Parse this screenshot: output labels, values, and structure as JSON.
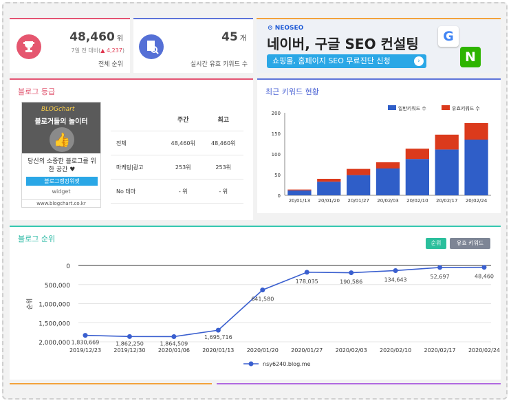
{
  "rank_card": {
    "value": "48,460",
    "unit": "위",
    "week_compare_label": "7일 전 대비(",
    "week_delta": "▲ 4,237",
    "close_paren": ")",
    "caption": "전체 순위"
  },
  "keyword_card": {
    "value": "45",
    "unit": "개",
    "caption": "실시간 유효 키워드 수"
  },
  "ad": {
    "brand": "NEOSEO",
    "headline": "네이버, 구글 SEO 컨설팅",
    "cta": "쇼핑몰, 홈페이지 SEO 무료진단 신청"
  },
  "blog_grade": {
    "title": "블로그 등급",
    "widget": {
      "logo": "BLOGchart",
      "tagline": "블로거들의 놀이터",
      "desc": "당신의 소중한 블로그를 위한 공간 ♥",
      "button": "블로그랭킹위젯",
      "widget_label": "widget",
      "url": "www.blogchart.co.kr"
    },
    "headers": [
      "",
      "주간",
      "최고"
    ],
    "rows": [
      [
        "전체",
        "48,460위",
        "48,460위"
      ],
      [
        "마케팅|광고",
        "253위",
        "253위"
      ],
      [
        "No 테마",
        "- 위",
        "- 위"
      ]
    ]
  },
  "keyword_chart_title": "최근 키워드 현황",
  "rank_chart_title": "블로그 순위",
  "rank_buttons": {
    "rank": "순위",
    "keyword": "유효 키워드"
  },
  "colors": {
    "general": "#2f5ec8",
    "valid": "#db3a1c",
    "line": "#3a5fcf"
  },
  "chart_data": [
    {
      "type": "bar",
      "title": "최근 키워드 현황",
      "categories": [
        "20/01/13",
        "20/01/20",
        "20/01/27",
        "20/02/03",
        "20/02/10",
        "20/02/17",
        "20/02/24"
      ],
      "series": [
        {
          "name": "일반키워드 수",
          "values": [
            12,
            33,
            49,
            65,
            88,
            111,
            135
          ]
        },
        {
          "name": "유효키워드 수",
          "values": [
            2,
            7,
            15,
            15,
            25,
            36,
            40
          ]
        }
      ],
      "stacked": true,
      "ylim": [
        0,
        200
      ],
      "yticks": [
        "0",
        "50",
        "100",
        "150",
        "200"
      ],
      "legend": "top-right"
    },
    {
      "type": "line",
      "title": "블로그 순위",
      "x": [
        "2019/12/23",
        "2019/12/30",
        "2020/01/06",
        "2020/01/13",
        "2020/01/20",
        "2020/01/27",
        "2020/02/03",
        "2020/02/10",
        "2020/02/17",
        "2020/02/24"
      ],
      "series": [
        {
          "name": "nsy6240.blog.me",
          "values": [
            1830669,
            1862250,
            1864509,
            1695716,
            641580,
            178035,
            190586,
            134643,
            52697,
            48460
          ],
          "labels": [
            "1,830,669",
            "1,862,250",
            "1,864,509",
            "1,695,716",
            "641,580",
            "178,035",
            "190,586",
            "134,643",
            "52,697",
            "48,460"
          ]
        }
      ],
      "ylabel": "순위",
      "ylim": [
        0,
        2000000
      ],
      "reversed": true,
      "yticks": [
        "0",
        "500,000",
        "1,000,000",
        "1,500,000",
        "2,000,000"
      ],
      "legend": "bottom"
    }
  ]
}
